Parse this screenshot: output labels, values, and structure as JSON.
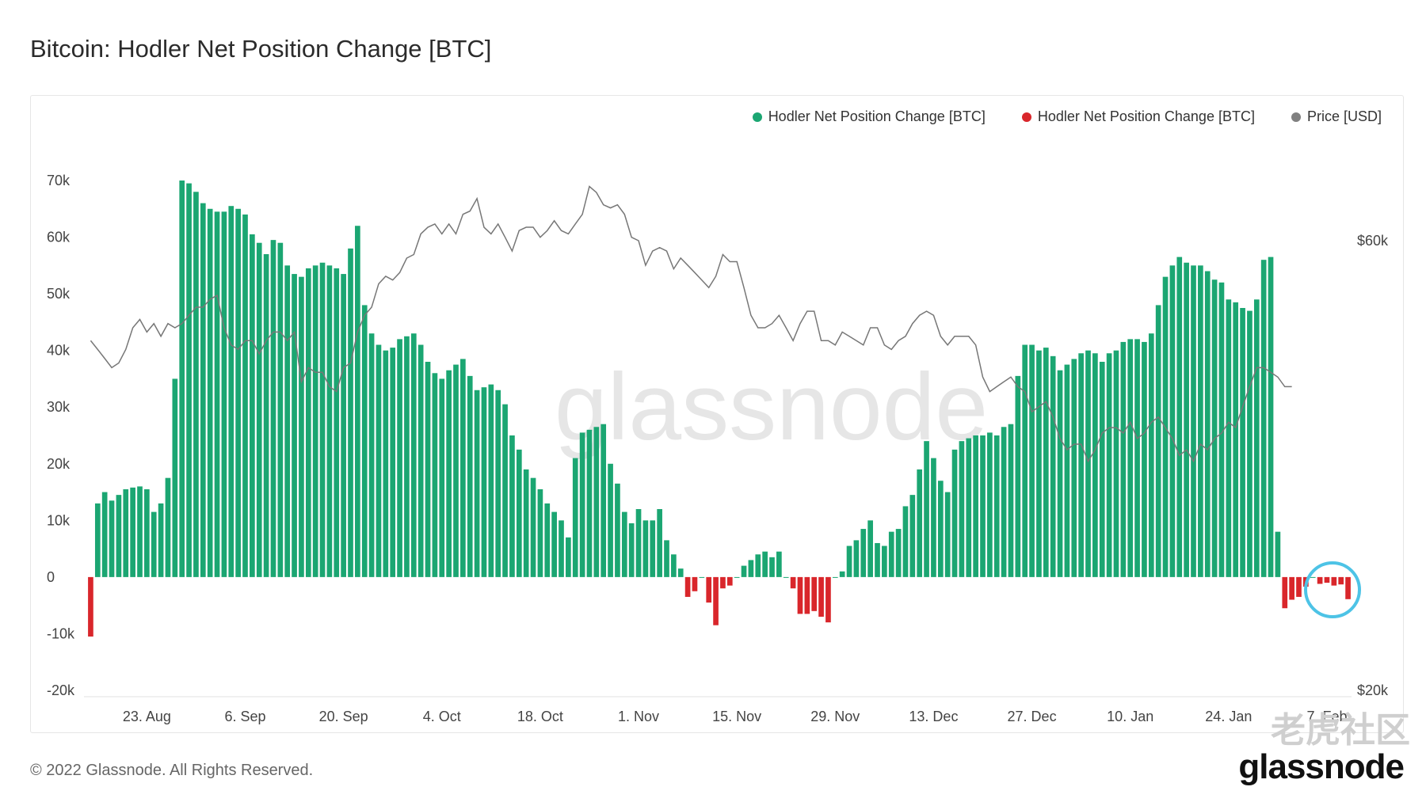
{
  "header": {
    "title": "Bitcoin: Hodler Net Position Change [BTC]"
  },
  "legend": [
    {
      "label": "Hodler Net Position Change [BTC]",
      "color": "#1ba672"
    },
    {
      "label": "Hodler Net Position Change [BTC]",
      "color": "#d9262b"
    },
    {
      "label": "Price [USD]",
      "color": "#808080"
    }
  ],
  "footer": {
    "copyright": "© 2022 Glassnode. All Rights Reserved.",
    "brand": "glassnode"
  },
  "watermark": {
    "text": "glassnode",
    "overlay": "老虎社区"
  },
  "chart_data": {
    "type": "bar",
    "title": "Bitcoin: Hodler Net Position Change [BTC]",
    "y_left": {
      "range": [
        -20000,
        70000
      ],
      "ticks": [
        "70k",
        "60k",
        "50k",
        "40k",
        "30k",
        "20k",
        "10k",
        "0",
        "-10k",
        "-20k"
      ]
    },
    "y_right": {
      "scale": "log",
      "ticks": [
        "$60k",
        "$20k"
      ]
    },
    "x_ticks": [
      "23. Aug",
      "6. Sep",
      "20. Sep",
      "4. Oct",
      "18. Oct",
      "1. Nov",
      "15. Nov",
      "29. Nov",
      "13. Dec",
      "27. Dec",
      "10. Jan",
      "24. Jan",
      "7. Feb"
    ],
    "x_start_date": "2021-08-15",
    "grid": false,
    "legend_position": "top-right",
    "colors": {
      "positive": "#1ba672",
      "negative": "#d9262b",
      "price": "#808080",
      "highlight": "#4dc3e6"
    },
    "series": [
      {
        "name": "Hodler Net Position Change [BTC]",
        "values": [
          -10500,
          13000,
          15000,
          13500,
          14500,
          15500,
          15800,
          16000,
          15500,
          11500,
          13000,
          17500,
          35000,
          70000,
          69500,
          68000,
          66000,
          65000,
          64500,
          64500,
          65500,
          65000,
          64000,
          60500,
          59000,
          57000,
          59500,
          59000,
          55000,
          53500,
          53000,
          54500,
          55000,
          55500,
          55000,
          54500,
          53500,
          58000,
          62000,
          48000,
          43000,
          41000,
          40000,
          40500,
          42000,
          42500,
          43000,
          41000,
          38000,
          36000,
          35000,
          36500,
          37500,
          38500,
          35500,
          33000,
          33500,
          34000,
          33000,
          30500,
          25000,
          22500,
          19000,
          17500,
          15500,
          13000,
          11500,
          10000,
          7000,
          21000,
          25500,
          26000,
          26500,
          27000,
          20000,
          16500,
          11500,
          9500,
          12000,
          10000,
          10000,
          12000,
          6500,
          4000,
          1500,
          -3500,
          -2500,
          0,
          -4500,
          -8500,
          -2000,
          -1500,
          0,
          2000,
          3000,
          4000,
          4500,
          3500,
          4500,
          0,
          -2000,
          -6500,
          -6500,
          -6000,
          -7000,
          -8000,
          0,
          1000,
          5500,
          6500,
          8500,
          10000,
          6000,
          5500,
          8000,
          8500,
          12500,
          14500,
          19000,
          24000,
          21000,
          17000,
          15000,
          22500,
          24000,
          24500,
          25000,
          25000,
          25500,
          25000,
          26500,
          27000,
          35500,
          41000,
          41000,
          40000,
          40500,
          39000,
          36500,
          37500,
          38500,
          39500,
          40000,
          39500,
          38000,
          39500,
          40000,
          41500,
          42000,
          42000,
          41500,
          43000,
          48000,
          53000,
          55000,
          56500,
          55500,
          55000,
          55000,
          54000,
          52500,
          52000,
          49000,
          48500,
          47500,
          47000,
          49000,
          56000,
          56500,
          8000,
          -5500,
          -4000,
          -3500,
          -1700,
          0,
          -1200,
          -1000,
          -1500,
          -1300,
          -3900
        ]
      },
      {
        "name": "Price [USD]",
        "values": [
          47000,
          46000,
          45000,
          44000,
          44500,
          46000,
          48500,
          49500,
          48000,
          49000,
          47500,
          49000,
          48500,
          49000,
          50000,
          51000,
          51000,
          52000,
          52500,
          48500,
          46500,
          46000,
          47000,
          47000,
          45500,
          47000,
          48000,
          48000,
          47000,
          48000,
          42500,
          44000,
          43500,
          43500,
          42000,
          41500,
          44000,
          44500,
          48000,
          50000,
          51000,
          54000,
          55000,
          54500,
          55500,
          57500,
          58000,
          61000,
          62000,
          62500,
          61000,
          62500,
          61000,
          64000,
          64500,
          66500,
          62000,
          61000,
          62500,
          60500,
          58500,
          61500,
          62000,
          62000,
          60500,
          61500,
          63000,
          61500,
          61000,
          62500,
          64000,
          68500,
          67500,
          65500,
          65000,
          65500,
          64000,
          60500,
          60000,
          56500,
          58500,
          59000,
          58500,
          56000,
          57500,
          56500,
          55500,
          54500,
          53500,
          55000,
          58000,
          57000,
          57000,
          53500,
          50000,
          48500,
          48500,
          49000,
          50000,
          48500,
          47000,
          49000,
          50500,
          50500,
          47000,
          47000,
          46500,
          48000,
          47500,
          47000,
          46500,
          48500,
          48500,
          46500,
          46000,
          47000,
          47500,
          49000,
          50000,
          50500,
          50000,
          47500,
          46500,
          47500,
          47500,
          47500,
          46500,
          43000,
          41500,
          42000,
          42500,
          43000,
          42000,
          41500,
          39500,
          40000,
          40500,
          39000,
          37000,
          36000,
          36500,
          36500,
          35000,
          36000,
          37500,
          38000,
          38000,
          37500,
          38500,
          37000,
          37500,
          38500,
          39000,
          38000,
          37000,
          35500,
          36000,
          35000,
          36500,
          36000,
          37000,
          37500,
          38500,
          38000,
          40000,
          42000,
          44000,
          44000,
          43500,
          43000,
          42000,
          42000
        ]
      }
    ]
  }
}
